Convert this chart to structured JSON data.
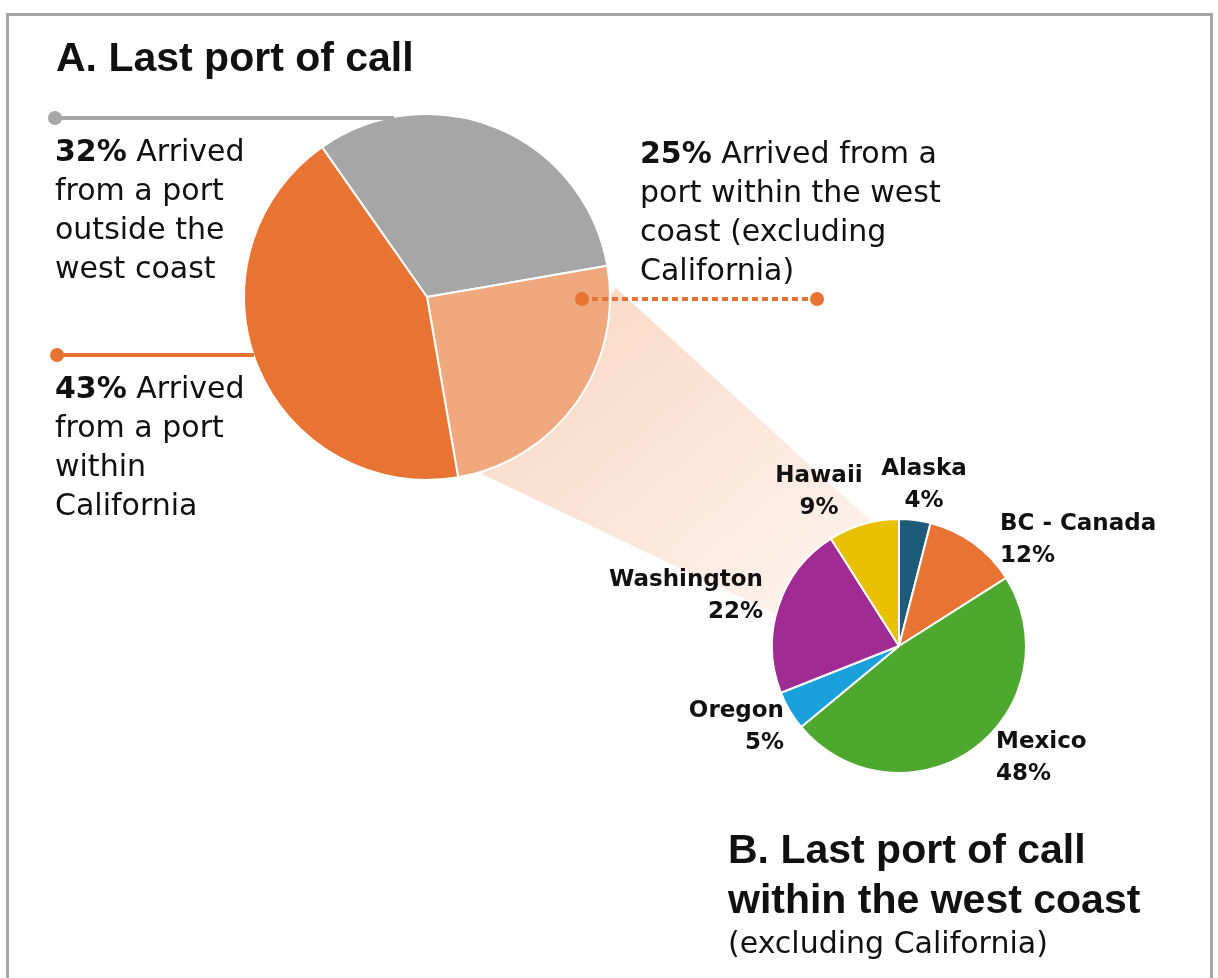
{
  "chart_data": [
    {
      "type": "pie",
      "title": "A. Last port of call",
      "categories": [
        "Arrived from a port outside the west coast",
        "Arrived from a port within the west coast (excluding California)",
        "Arrived from a port within California"
      ],
      "values": [
        32,
        25,
        43
      ],
      "colors": [
        "#a6a6a6",
        "#f0a97f",
        "#e87433"
      ],
      "value_labels": [
        "32%",
        "25%",
        "43%"
      ],
      "legend": "left"
    },
    {
      "type": "pie",
      "title": "B. Last port of call within the west coast",
      "subtitle": "(excluding California)",
      "categories": [
        "Alaska",
        "BC - Canada",
        "Mexico",
        "Oregon",
        "Washington",
        "Hawaii"
      ],
      "values": [
        4,
        12,
        48,
        5,
        22,
        9
      ],
      "colors": [
        "#1d5b79",
        "#e87433",
        "#4ea72e",
        "#1aa1dc",
        "#a02b93",
        "#e8c100"
      ],
      "value_labels": [
        "4%",
        "12%",
        "48%",
        "5%",
        "22%",
        "9%"
      ]
    }
  ]
}
